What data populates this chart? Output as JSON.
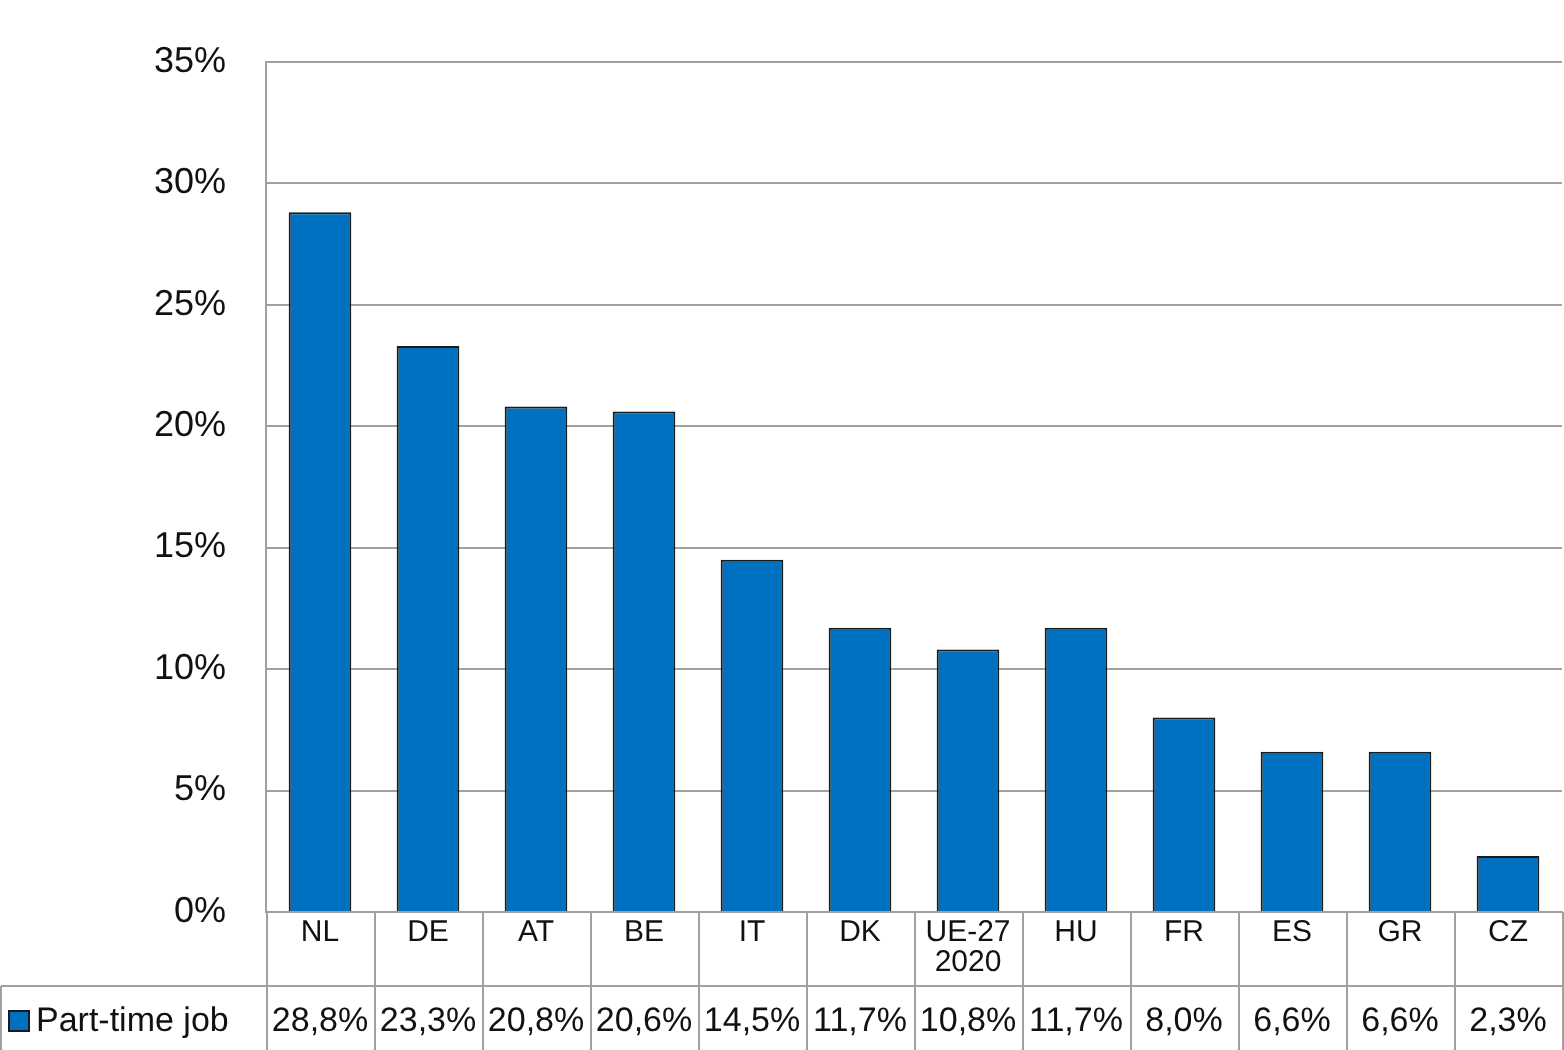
{
  "chart_data": {
    "type": "bar",
    "categories": [
      "NL",
      "DE",
      "AT",
      "BE",
      "IT",
      "DK",
      "UE-27 2020",
      "HU",
      "FR",
      "ES",
      "GR",
      "CZ"
    ],
    "series": [
      {
        "name": "Part-time job",
        "color": "#0070c0",
        "values": [
          28.8,
          23.3,
          20.8,
          20.6,
          14.5,
          11.7,
          10.8,
          11.7,
          8.0,
          6.6,
          6.6,
          2.3
        ],
        "value_labels": [
          "28,8%",
          "23,3%",
          "20,8%",
          "20,6%",
          "14,5%",
          "11,7%",
          "10,8%",
          "11,7%",
          "8,0%",
          "6,6%",
          "6,6%",
          "2,3%"
        ]
      }
    ],
    "ylim": [
      0,
      35
    ],
    "yticks": [
      {
        "value": 0,
        "label": "0%"
      },
      {
        "value": 5,
        "label": "5%"
      },
      {
        "value": 10,
        "label": "10%"
      },
      {
        "value": 15,
        "label": "15%"
      },
      {
        "value": 20,
        "label": "20%"
      },
      {
        "value": 25,
        "label": "25%"
      },
      {
        "value": 30,
        "label": "30%"
      },
      {
        "value": 35,
        "label": "35%"
      }
    ],
    "grid": "y",
    "legend": "bottom"
  }
}
